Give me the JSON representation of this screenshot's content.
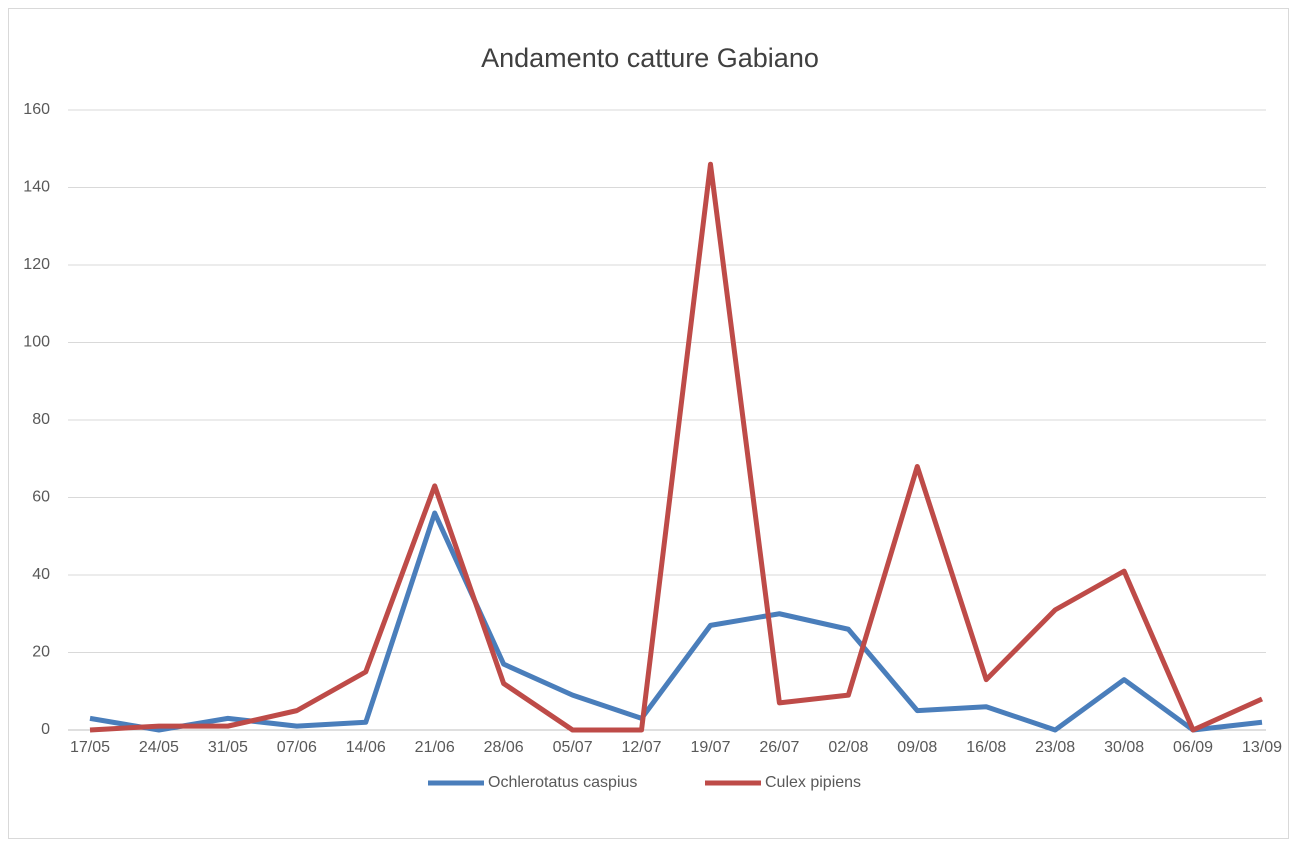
{
  "chart_data": {
    "type": "line",
    "title": "Andamento catture Gabiano",
    "categories": [
      "17/05",
      "24/05",
      "31/05",
      "07/06",
      "14/06",
      "21/06",
      "28/06",
      "05/07",
      "12/07",
      "19/07",
      "26/07",
      "02/08",
      "09/08",
      "16/08",
      "23/08",
      "30/08",
      "06/09",
      "13/09"
    ],
    "series": [
      {
        "name": "Ochlerotatus caspius",
        "color": "#4a7ebb",
        "values": [
          3,
          0,
          3,
          1,
          2,
          56,
          17,
          9,
          3,
          27,
          30,
          26,
          5,
          6,
          0,
          13,
          0,
          2
        ]
      },
      {
        "name": "Culex pipiens",
        "color": "#be4b48",
        "values": [
          0,
          1,
          1,
          5,
          15,
          63,
          12,
          0,
          0,
          146,
          7,
          9,
          68,
          13,
          31,
          41,
          0,
          8
        ]
      }
    ],
    "ylim": [
      0,
      160
    ],
    "yticks": [
      0,
      20,
      40,
      60,
      80,
      100,
      120,
      140,
      160
    ],
    "grid": true,
    "legend": "bottom"
  }
}
